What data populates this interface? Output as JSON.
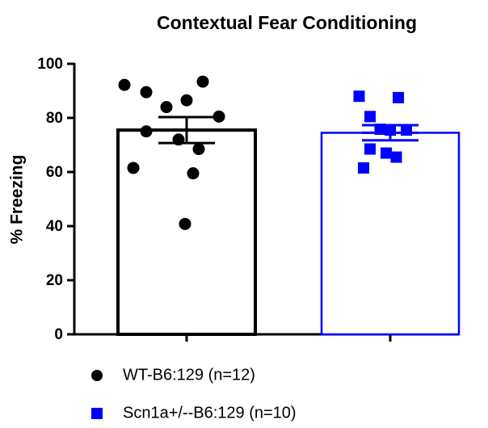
{
  "chart_data": {
    "type": "bar",
    "title": "Contextual Fear Conditioning",
    "y_label": "% Freezing",
    "ylim": [
      0,
      100
    ],
    "yticks": [
      0,
      20,
      40,
      60,
      80,
      100
    ],
    "series": [
      {
        "name": "WT-B6:129 (n=12)",
        "color": "#000000",
        "marker": "circle",
        "values": [
          75.5
        ],
        "errors": [
          4.8
        ],
        "points": [
          92.2,
          93.4,
          89.5,
          86.5,
          84,
          80.5,
          75,
          72,
          68.5,
          61.5,
          59.5,
          40.8
        ]
      },
      {
        "name": "Scn1a+/--B6:129 (n=10)",
        "color": "#0000ff",
        "marker": "square",
        "values": [
          74.5
        ],
        "errors": [
          2.8
        ],
        "points": [
          88,
          87.5,
          80.5,
          75.5,
          75.8,
          75.5,
          68.5,
          67,
          65.5,
          61.5
        ]
      }
    ]
  }
}
